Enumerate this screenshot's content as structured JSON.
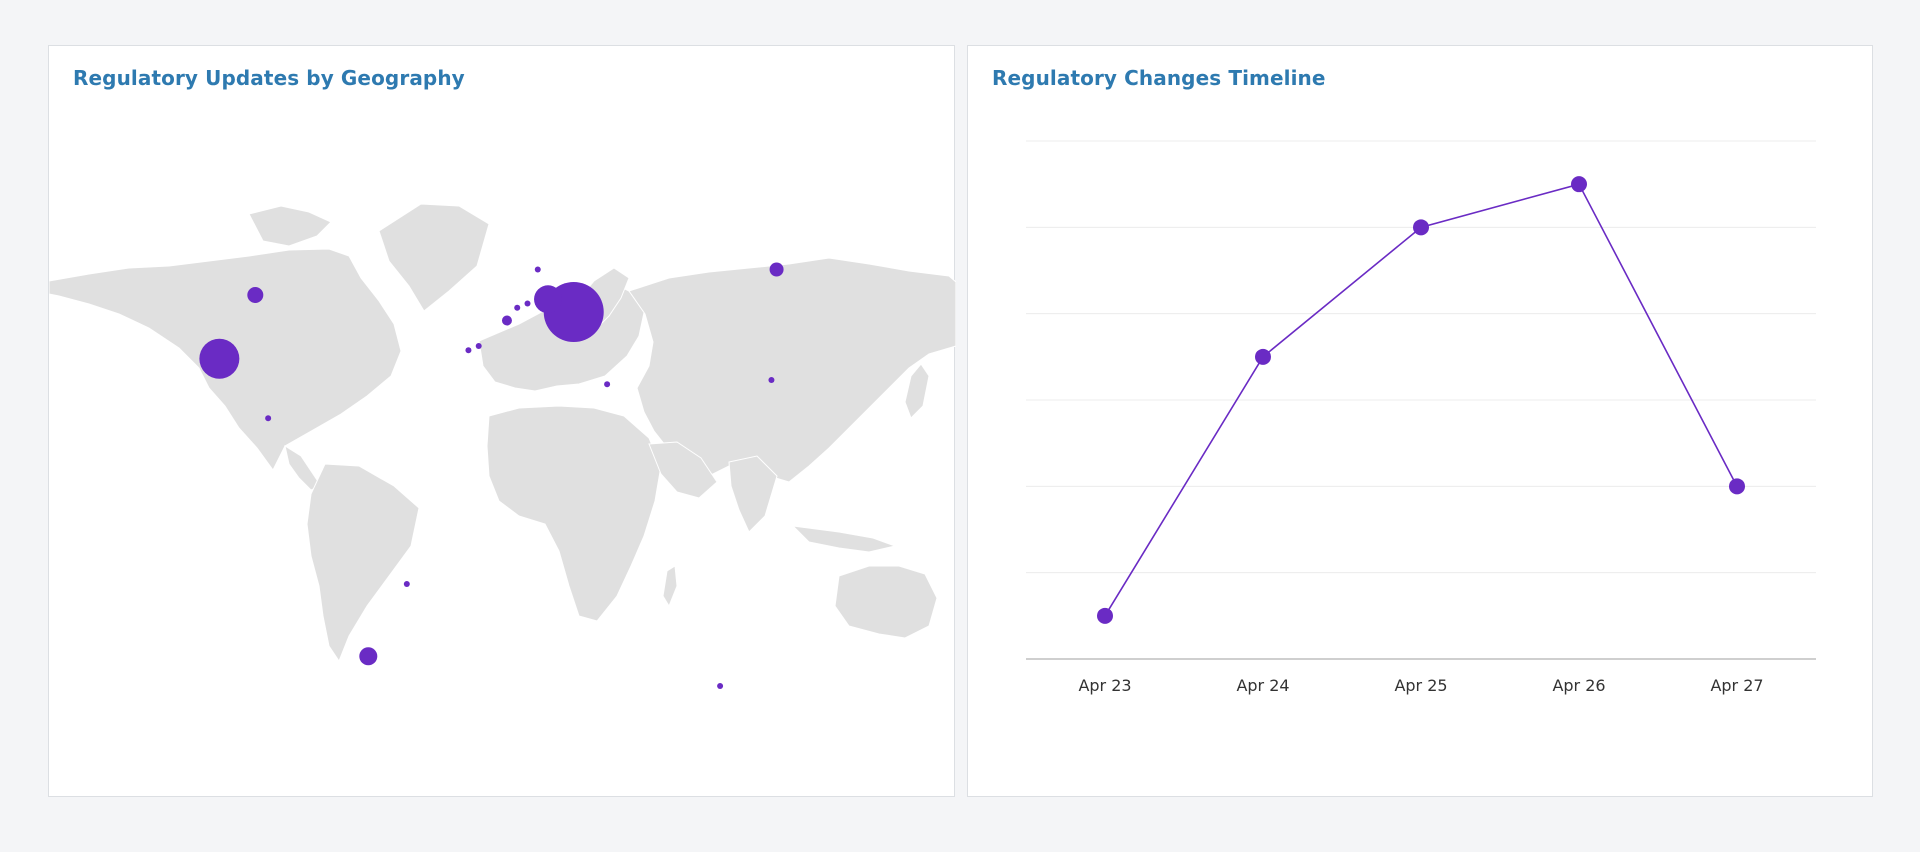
{
  "map_panel": {
    "title": "Regulatory Updates by Geography",
    "bubble_color": "#6a2bc4",
    "land_color": "#e0e0e0",
    "bubbles": [
      {
        "region": "United States (West)",
        "lon": -120,
        "lat": 37,
        "size": 20
      },
      {
        "region": "Canada",
        "lon": -106,
        "lat": 52,
        "size": 8
      },
      {
        "region": "Mexico",
        "lon": -101,
        "lat": 23,
        "size": 3
      },
      {
        "region": "Argentina",
        "lon": -62,
        "lat": -33,
        "size": 9
      },
      {
        "region": "Brazil",
        "lon": -47,
        "lat": -16,
        "size": 3
      },
      {
        "region": "Europe (Central)",
        "lon": 18,
        "lat": 48,
        "size": 30
      },
      {
        "region": "Germany",
        "lon": 8,
        "lat": 51,
        "size": 14
      },
      {
        "region": "Netherlands",
        "lon": 0,
        "lat": 50,
        "size": 3
      },
      {
        "region": "Belgium",
        "lon": -4,
        "lat": 49,
        "size": 2
      },
      {
        "region": "France",
        "lon": -8,
        "lat": 46,
        "size": 5
      },
      {
        "region": "Spain",
        "lon": -19,
        "lat": 40,
        "size": 3
      },
      {
        "region": "Portugal",
        "lon": -23,
        "lat": 39,
        "size": 2
      },
      {
        "region": "Scandinavia",
        "lon": 4,
        "lat": 58,
        "size": 2
      },
      {
        "region": "Middle East",
        "lon": 31,
        "lat": 31,
        "size": 2
      },
      {
        "region": "Russia",
        "lon": 97,
        "lat": 58,
        "size": 7
      },
      {
        "region": "China",
        "lon": 95,
        "lat": 32,
        "size": 2
      },
      {
        "region": "Indian Ocean",
        "lon": 75,
        "lat": -40,
        "size": 2
      }
    ]
  },
  "timeline_panel": {
    "title": "Regulatory Changes Timeline",
    "line_color": "#6a2bc4",
    "chart_data": {
      "type": "line",
      "categories": [
        "Apr 23",
        "Apr 24",
        "Apr 25",
        "Apr 26",
        "Apr 27"
      ],
      "values": [
        5,
        35,
        50,
        55,
        20
      ],
      "ylim": [
        0,
        60
      ],
      "grid": true,
      "ytick_labels_visible": false
    }
  }
}
